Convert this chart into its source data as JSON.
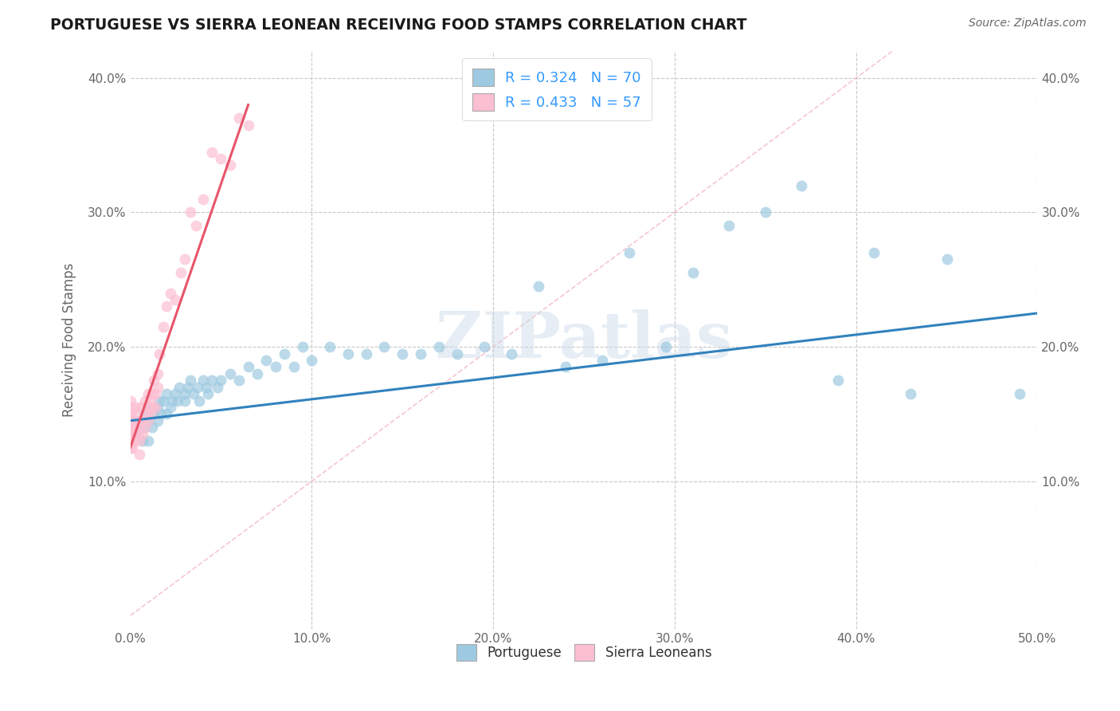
{
  "title": "PORTUGUESE VS SIERRA LEONEAN RECEIVING FOOD STAMPS CORRELATION CHART",
  "source": "Source: ZipAtlas.com",
  "ylabel": "Receiving Food Stamps",
  "xlim": [
    0.0,
    0.5
  ],
  "ylim": [
    -0.01,
    0.42
  ],
  "watermark": "ZIPatlas",
  "color_blue": "#9ecae1",
  "color_pink": "#fcbfd2",
  "color_blue_line": "#3182bd",
  "color_pink_line": "#e8546a",
  "color_diag": "#f4b8c4",
  "title_color": "#1a1a1a",
  "source_color": "#666666",
  "axis_color": "#666666",
  "grid_color": "#c8c8c8",
  "portuguese_x": [
    0.003,
    0.005,
    0.005,
    0.007,
    0.008,
    0.008,
    0.01,
    0.01,
    0.01,
    0.012,
    0.013,
    0.015,
    0.015,
    0.016,
    0.017,
    0.018,
    0.02,
    0.02,
    0.022,
    0.023,
    0.025,
    0.026,
    0.027,
    0.03,
    0.03,
    0.032,
    0.033,
    0.035,
    0.037,
    0.038,
    0.04,
    0.042,
    0.043,
    0.045,
    0.048,
    0.05,
    0.055,
    0.06,
    0.065,
    0.07,
    0.075,
    0.08,
    0.085,
    0.09,
    0.095,
    0.1,
    0.11,
    0.12,
    0.13,
    0.14,
    0.15,
    0.16,
    0.17,
    0.18,
    0.195,
    0.21,
    0.225,
    0.24,
    0.26,
    0.275,
    0.295,
    0.31,
    0.33,
    0.35,
    0.37,
    0.39,
    0.41,
    0.43,
    0.45,
    0.49
  ],
  "portuguese_y": [
    0.135,
    0.14,
    0.145,
    0.13,
    0.14,
    0.15,
    0.13,
    0.145,
    0.155,
    0.14,
    0.15,
    0.155,
    0.145,
    0.16,
    0.15,
    0.16,
    0.15,
    0.165,
    0.155,
    0.16,
    0.165,
    0.16,
    0.17,
    0.16,
    0.165,
    0.17,
    0.175,
    0.165,
    0.17,
    0.16,
    0.175,
    0.17,
    0.165,
    0.175,
    0.17,
    0.175,
    0.18,
    0.175,
    0.185,
    0.18,
    0.19,
    0.185,
    0.195,
    0.185,
    0.2,
    0.19,
    0.2,
    0.195,
    0.195,
    0.2,
    0.195,
    0.195,
    0.2,
    0.195,
    0.2,
    0.195,
    0.245,
    0.185,
    0.19,
    0.27,
    0.2,
    0.255,
    0.29,
    0.3,
    0.32,
    0.175,
    0.27,
    0.165,
    0.265,
    0.165
  ],
  "sierra_x": [
    0.0,
    0.0,
    0.0,
    0.0,
    0.0,
    0.0,
    0.0,
    0.0,
    0.0,
    0.001,
    0.001,
    0.001,
    0.001,
    0.002,
    0.002,
    0.002,
    0.003,
    0.003,
    0.004,
    0.004,
    0.005,
    0.005,
    0.005,
    0.006,
    0.006,
    0.007,
    0.007,
    0.008,
    0.008,
    0.009,
    0.01,
    0.01,
    0.01,
    0.011,
    0.011,
    0.012,
    0.012,
    0.013,
    0.014,
    0.014,
    0.015,
    0.015,
    0.016,
    0.018,
    0.02,
    0.022,
    0.025,
    0.028,
    0.03,
    0.033,
    0.036,
    0.04,
    0.045,
    0.05,
    0.055,
    0.06,
    0.065
  ],
  "sierra_y": [
    0.13,
    0.14,
    0.15,
    0.155,
    0.16,
    0.14,
    0.145,
    0.135,
    0.125,
    0.13,
    0.14,
    0.125,
    0.135,
    0.145,
    0.14,
    0.13,
    0.15,
    0.155,
    0.145,
    0.135,
    0.14,
    0.13,
    0.12,
    0.145,
    0.155,
    0.145,
    0.135,
    0.14,
    0.16,
    0.15,
    0.145,
    0.155,
    0.165,
    0.15,
    0.16,
    0.155,
    0.165,
    0.175,
    0.165,
    0.155,
    0.17,
    0.18,
    0.195,
    0.215,
    0.23,
    0.24,
    0.235,
    0.255,
    0.265,
    0.3,
    0.29,
    0.31,
    0.345,
    0.34,
    0.335,
    0.37,
    0.365
  ],
  "blue_line_x": [
    0.0,
    0.5
  ],
  "blue_line_y": [
    0.145,
    0.225
  ],
  "pink_line_x": [
    0.0,
    0.065
  ],
  "pink_line_y": [
    0.125,
    0.38
  ],
  "diag_line_x": [
    0.0,
    0.42
  ],
  "diag_line_y": [
    0.0,
    0.42
  ]
}
